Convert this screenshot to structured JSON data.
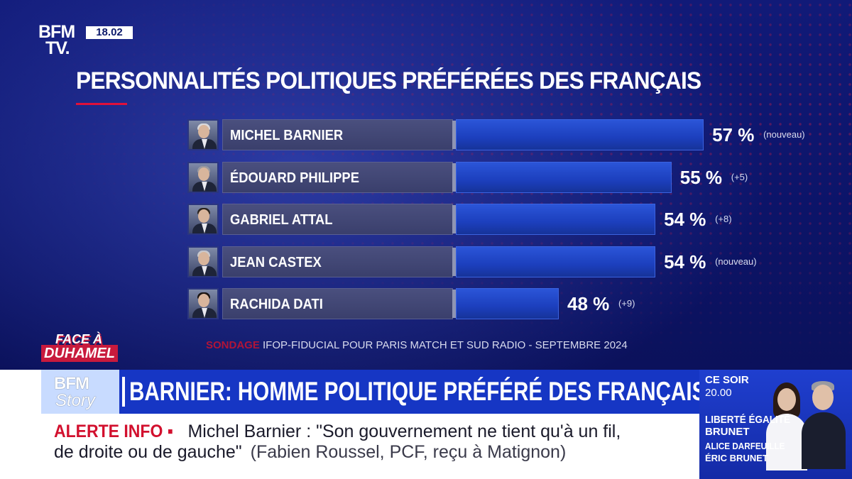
{
  "channel": {
    "logo_line1": "BFM",
    "logo_line2": "TV.",
    "clock": "18.02"
  },
  "chart_data": {
    "type": "bar",
    "title": "PERSONNALITÉS POLITIQUES PRÉFÉRÉES DES FRANÇAIS",
    "categories": [
      "MICHEL BARNIER",
      "ÉDOUARD PHILIPPE",
      "GABRIEL ATTAL",
      "JEAN CASTEX",
      "RACHIDA DATI"
    ],
    "values": [
      57,
      55,
      54,
      54,
      48
    ],
    "value_labels": [
      "57 %",
      "55 %",
      "54 %",
      "54 %",
      "48 %"
    ],
    "changes": [
      "(nouveau)",
      "(+5)",
      "(+8)",
      "(nouveau)",
      "(+9)"
    ],
    "orientation": "horizontal",
    "unit": "%",
    "bar_color": "#1f44c6"
  },
  "source": {
    "label": "SONDAGE",
    "text": "IFOP-FIDUCIAL POUR PARIS MATCH ET SUD RADIO - SEPTEMBRE 2024"
  },
  "show_logo": {
    "line1": "FACE À",
    "line2": "DUHAMEL"
  },
  "story_logo": {
    "line1": "BFM",
    "line2": "Story"
  },
  "headline": "BARNIER: HOMME POLITIQUE PRÉFÉRÉ DES FRANÇAIS!",
  "ticker": {
    "label": "ALERTE INFO ▪",
    "line1": "Michel Barnier : \"Son gouvernement ne tient qu'à un fil,",
    "line2": "de droite ou de gauche\"",
    "attribution": "(Fabien Roussel, PCF, reçu à Matignon)"
  },
  "promo": {
    "when1": "CE SOIR",
    "when2": "20.00",
    "show_line1": "LIBERTÉ ÉGALITÉ",
    "show_line2": "BRUNET",
    "host1": "ALICE DARFEUILLE",
    "host2": "ÉRIC BRUNET"
  },
  "colors": {
    "accent_red": "#d2102e",
    "brand_blue": "#1636c4",
    "background_navy": "#0c1468"
  }
}
